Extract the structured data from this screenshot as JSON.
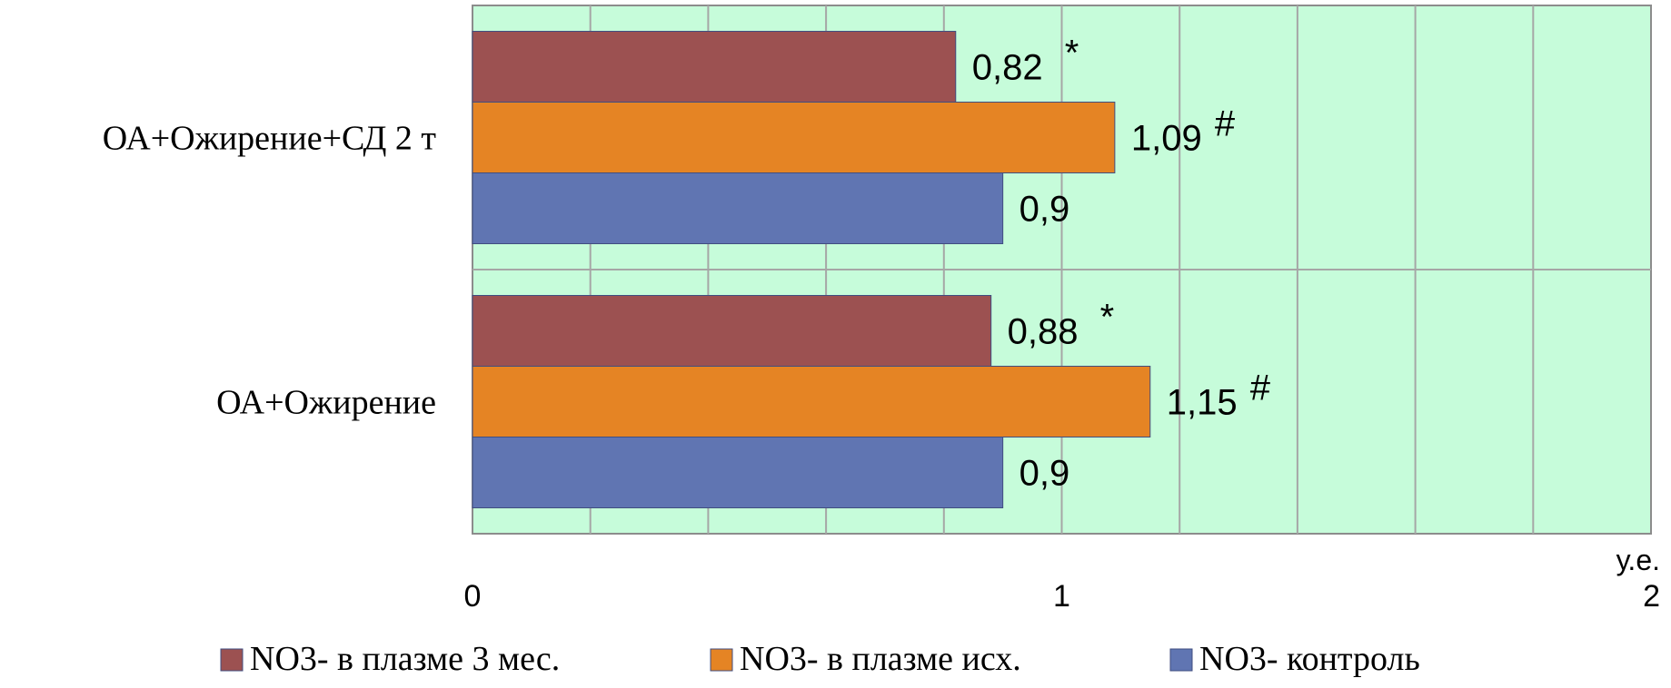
{
  "chart_data": {
    "type": "bar",
    "orientation": "horizontal",
    "categories": [
      "ОА+Ожирение+СД 2 т",
      "ОА+Ожирение"
    ],
    "series": [
      {
        "name": "NO3- в плазме 3 мес.",
        "color": "#9C5151",
        "values": [
          0.82,
          0.88
        ],
        "labels": [
          "0,82",
          "0,88"
        ],
        "marks": [
          "*",
          "*"
        ]
      },
      {
        "name": "NO3- в плазме исх.",
        "color": "#E58424",
        "values": [
          1.09,
          1.15
        ],
        "labels": [
          "1,09",
          "1,15"
        ],
        "marks": [
          "#",
          "#"
        ]
      },
      {
        "name": "NO3- контроль",
        "color": "#6075B2",
        "values": [
          0.9,
          0.9
        ],
        "labels": [
          "0,9",
          "0,9"
        ],
        "marks": [
          "",
          ""
        ]
      }
    ],
    "xlim": [
      0,
      2
    ],
    "xticks": [
      0,
      1,
      2
    ],
    "xtick_labels": [
      "0",
      "1",
      "2"
    ],
    "xunit": "у.е.",
    "grid": true,
    "plot_background": "#C6FCDA",
    "legend_position": "bottom"
  }
}
